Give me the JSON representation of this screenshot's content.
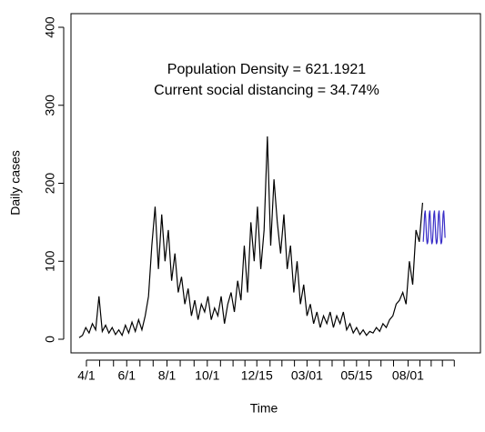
{
  "chart_data": {
    "type": "line",
    "annotations": [
      "Population Density =  621.1921",
      "Current social distancing = 34.74%"
    ],
    "xlabel": "Time",
    "ylabel": "Daily cases",
    "series": [
      {
        "color": "#000000",
        "x": [
          -11,
          -6,
          -1,
          4,
          9,
          14,
          19,
          24,
          29,
          34,
          39,
          44,
          49,
          54,
          59,
          64,
          69,
          74,
          79,
          84,
          89,
          94,
          99,
          104,
          109,
          114,
          119,
          124,
          129,
          134,
          139,
          144,
          149,
          154,
          159,
          164,
          169,
          174,
          179,
          184,
          189,
          194,
          199,
          204,
          209,
          214,
          219,
          224,
          229,
          234,
          239,
          244,
          249,
          254,
          259,
          264,
          269,
          274,
          279,
          284,
          289,
          294,
          299,
          304,
          309,
          314,
          319,
          324,
          329,
          334,
          339,
          344,
          349,
          354,
          359,
          364,
          369,
          374,
          379,
          384,
          389,
          394,
          399,
          404,
          409,
          414,
          419,
          424,
          429,
          434,
          439,
          444,
          449,
          454,
          459,
          464,
          469,
          474,
          479,
          484,
          489,
          494,
          499,
          504,
          509
        ],
        "values": [
          2,
          5,
          15,
          8,
          20,
          12,
          55,
          10,
          18,
          8,
          15,
          6,
          12,
          5,
          18,
          8,
          22,
          10,
          25,
          12,
          30,
          55,
          120,
          170,
          90,
          160,
          100,
          140,
          75,
          110,
          60,
          80,
          45,
          65,
          30,
          50,
          25,
          45,
          35,
          55,
          25,
          40,
          30,
          55,
          20,
          45,
          60,
          35,
          75,
          50,
          120,
          60,
          150,
          100,
          170,
          90,
          140,
          260,
          120,
          205,
          150,
          110,
          160,
          90,
          120,
          60,
          100,
          45,
          70,
          30,
          45,
          20,
          35,
          15,
          30,
          20,
          35,
          15,
          30,
          20,
          35,
          12,
          20,
          8,
          15,
          6,
          12,
          5,
          10,
          8,
          15,
          10,
          20,
          15,
          25,
          30,
          45,
          50,
          60,
          45,
          100,
          70,
          140,
          125,
          175
        ]
      },
      {
        "color": "#3a2fc8",
        "x": [
          510,
          511,
          512,
          513,
          514,
          515,
          516,
          517,
          518,
          519,
          520,
          521,
          522,
          523,
          524,
          525,
          526,
          527,
          528,
          529,
          530,
          531,
          532,
          533,
          534,
          535,
          536,
          537,
          538,
          539,
          540,
          541,
          542,
          543
        ],
        "values": [
          125,
          140,
          160,
          165,
          150,
          130,
          122,
          125,
          140,
          160,
          165,
          150,
          130,
          122,
          125,
          140,
          160,
          165,
          150,
          130,
          122,
          125,
          140,
          160,
          165,
          150,
          130,
          122,
          125,
          140,
          160,
          165,
          150,
          130
        ]
      }
    ],
    "xlim": [
      -23.4,
      596.6
    ],
    "xticks": [
      {
        "value": 0,
        "label": "4/1"
      },
      {
        "value": 61,
        "label": "6/1"
      },
      {
        "value": 122,
        "label": "8/1"
      },
      {
        "value": 183,
        "label": "10/1"
      },
      {
        "value": 258,
        "label": "12/15"
      },
      {
        "value": 334,
        "label": "03/01"
      },
      {
        "value": 409,
        "label": "05/15"
      },
      {
        "value": 487,
        "label": "08/01"
      }
    ],
    "xminorticks": [
      20,
      41,
      81,
      101,
      142,
      163,
      203,
      222,
      240,
      278,
      296,
      315,
      353,
      372,
      390,
      428,
      446,
      465,
      505,
      522,
      539,
      557
    ],
    "ylim": [
      -17.5,
      417.5
    ],
    "yticks": [
      0,
      100,
      200,
      300,
      400
    ]
  }
}
